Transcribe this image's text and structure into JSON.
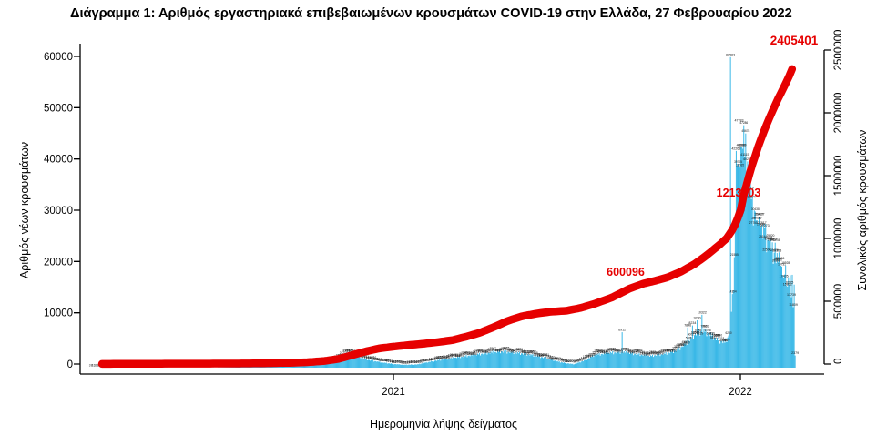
{
  "title": "Διάγραμμα 1: Αριθμός εργαστηριακά επιβεβαιωμένων κρουσμάτων COVID-19 στην Ελλάδα, 27 Φεβρουαρίου 2022",
  "axes": {
    "left": {
      "label": "Αριθμός νέων κρουσμάτων",
      "tick_labels": [
        "0",
        "10000",
        "20000",
        "30000",
        "40000",
        "50000",
        "60000"
      ]
    },
    "right": {
      "label": "Συνολικός αριθμός κρουσμάτων",
      "tick_labels": [
        "0",
        "500000",
        "1000000",
        "1500000",
        "2000000",
        "2500000"
      ]
    },
    "x": {
      "label": "Ημερομηνία λήψης δείγματος",
      "tick_labels": [
        "2021",
        "2022"
      ]
    }
  },
  "annotations": [
    {
      "text": "600096"
    },
    {
      "text": "1213303"
    },
    {
      "text": "2405401"
    }
  ],
  "colors": {
    "bar": "#31b5e6",
    "cumulative_line": "#e60000",
    "annotation": "#e60000",
    "bar_label_text": "#111111",
    "axis": "#000000"
  },
  "chart_data": {
    "type": "bar+line",
    "title": "Διάγραμμα 1: Αριθμός εργαστηριακά επιβεβαιωμένων κρουσμάτων COVID-19 στην Ελλάδα, 27 Φεβρουαρίου 2022",
    "xlabel": "Ημερομηνία λήψης δείγματος",
    "x_tick_years": [
      2021,
      2022
    ],
    "x_range": [
      2020.125,
      2022.16
    ],
    "left_ylabel": "Αριθμός νέων κρουσμάτων",
    "right_ylabel": "Συνολικός αριθμός κρουσμάτων",
    "left_ylim": [
      0,
      60000
    ],
    "right_ylim": [
      0,
      2500000
    ],
    "series": [
      {
        "name": "daily_new_cases",
        "type": "bar",
        "axis": "left",
        "anchors": [
          [
            2020.125,
            3
          ],
          [
            2020.22,
            85
          ],
          [
            2020.3,
            40
          ],
          [
            2020.4,
            14
          ],
          [
            2020.5,
            28
          ],
          [
            2020.58,
            130
          ],
          [
            2020.65,
            240
          ],
          [
            2020.72,
            330
          ],
          [
            2020.78,
            520
          ],
          [
            2020.82,
            1100
          ],
          [
            2020.85,
            2300
          ],
          [
            2020.875,
            3100
          ],
          [
            2020.9,
            2200
          ],
          [
            2020.93,
            1500
          ],
          [
            2020.97,
            1000
          ],
          [
            2021.0,
            740
          ],
          [
            2021.03,
            560
          ],
          [
            2021.07,
            650
          ],
          [
            2021.11,
            1250
          ],
          [
            2021.15,
            1700
          ],
          [
            2021.19,
            2100
          ],
          [
            2021.23,
            2500
          ],
          [
            2021.27,
            2900
          ],
          [
            2021.31,
            3200
          ],
          [
            2021.35,
            3000
          ],
          [
            2021.4,
            2500
          ],
          [
            2021.44,
            1900
          ],
          [
            2021.48,
            1100
          ],
          [
            2021.52,
            680
          ],
          [
            2021.55,
            1400
          ],
          [
            2021.58,
            2500
          ],
          [
            2021.62,
            2900
          ],
          [
            2021.66,
            3100
          ],
          [
            2021.7,
            2700
          ],
          [
            2021.74,
            2300
          ],
          [
            2021.78,
            2700
          ],
          [
            2021.82,
            3500
          ],
          [
            2021.85,
            5300
          ],
          [
            2021.875,
            6900
          ],
          [
            2021.895,
            7300
          ],
          [
            2021.915,
            6500
          ],
          [
            2021.935,
            5500
          ],
          [
            2021.955,
            5000
          ],
          [
            2021.968,
            6500
          ],
          [
            2021.978,
            14000
          ],
          [
            2021.985,
            26000
          ],
          [
            2021.992,
            40000
          ],
          [
            2022.0,
            45000
          ],
          [
            2022.008,
            46000
          ],
          [
            2022.016,
            42000
          ],
          [
            2022.025,
            38000
          ],
          [
            2022.035,
            32000
          ],
          [
            2022.05,
            29000
          ],
          [
            2022.065,
            27000
          ],
          [
            2022.08,
            25000
          ],
          [
            2022.095,
            23000
          ],
          [
            2022.11,
            21000
          ],
          [
            2022.125,
            19000
          ],
          [
            2022.14,
            17500
          ],
          [
            2022.16,
            16000
          ]
        ]
      },
      {
        "name": "cumulative_cases",
        "type": "line",
        "axis": "right",
        "anchors": [
          [
            2020.16,
            1000
          ],
          [
            2020.25,
            1300
          ],
          [
            2020.35,
            2700
          ],
          [
            2020.45,
            3100
          ],
          [
            2020.55,
            3800
          ],
          [
            2020.62,
            5300
          ],
          [
            2020.7,
            9500
          ],
          [
            2020.75,
            14000
          ],
          [
            2020.8,
            24000
          ],
          [
            2020.84,
            40000
          ],
          [
            2020.88,
            70000
          ],
          [
            2020.92,
            100000
          ],
          [
            2020.96,
            125000
          ],
          [
            2021.0,
            138000
          ],
          [
            2021.04,
            150000
          ],
          [
            2021.08,
            160000
          ],
          [
            2021.12,
            172000
          ],
          [
            2021.17,
            190000
          ],
          [
            2021.21,
            218000
          ],
          [
            2021.25,
            250000
          ],
          [
            2021.29,
            295000
          ],
          [
            2021.33,
            344000
          ],
          [
            2021.37,
            380000
          ],
          [
            2021.42,
            405000
          ],
          [
            2021.46,
            418000
          ],
          [
            2021.5,
            425000
          ],
          [
            2021.54,
            447000
          ],
          [
            2021.58,
            480000
          ],
          [
            2021.63,
            530000
          ],
          [
            2021.68,
            600096
          ],
          [
            2021.72,
            640000
          ],
          [
            2021.75,
            660000
          ],
          [
            2021.79,
            690000
          ],
          [
            2021.83,
            737000
          ],
          [
            2021.87,
            800000
          ],
          [
            2021.9,
            860000
          ],
          [
            2021.92,
            905000
          ],
          [
            2021.94,
            950000
          ],
          [
            2021.96,
            1000000
          ],
          [
            2021.98,
            1080000
          ],
          [
            2022.0,
            1213303
          ],
          [
            2022.01,
            1350000
          ],
          [
            2022.03,
            1550000
          ],
          [
            2022.05,
            1720000
          ],
          [
            2022.07,
            1870000
          ],
          [
            2022.09,
            2000000
          ],
          [
            2022.11,
            2120000
          ],
          [
            2022.13,
            2230000
          ],
          [
            2022.145,
            2320000
          ],
          [
            2022.157,
            2405401
          ]
        ]
      }
    ],
    "outlier_days": [
      [
        2021.66,
        6912
      ],
      [
        2021.848,
        7846
      ],
      [
        2021.862,
        8234
      ],
      [
        2021.876,
        9230
      ],
      [
        2021.89,
        10322
      ],
      [
        2021.972,
        60563
      ],
      [
        2021.988,
        42268
      ],
      [
        2021.995,
        47783
      ],
      [
        2022.003,
        43000
      ],
      [
        2022.012,
        41115
      ],
      [
        2022.02,
        40223
      ],
      [
        2022.047,
        28716
      ],
      [
        2022.055,
        29427
      ],
      [
        2022.063,
        27817
      ],
      [
        2022.07,
        27273
      ],
      [
        2022.085,
        24668
      ],
      [
        2022.093,
        24454
      ],
      [
        2022.1,
        24378
      ],
      [
        2022.107,
        22353
      ],
      [
        2022.115,
        20886
      ],
      [
        2022.125,
        17435
      ],
      [
        2022.137,
        15802
      ],
      [
        2022.146,
        13739
      ],
      [
        2022.152,
        11809
      ],
      [
        2022.159,
        2379
      ]
    ],
    "weekday_pattern": [
      1.0,
      0.93,
      1.05,
      0.97,
      1.08,
      0.88,
      0.99
    ],
    "milestone_annotations": [
      "600096",
      "1213303",
      "2405401"
    ],
    "grid": false,
    "legend": false
  }
}
